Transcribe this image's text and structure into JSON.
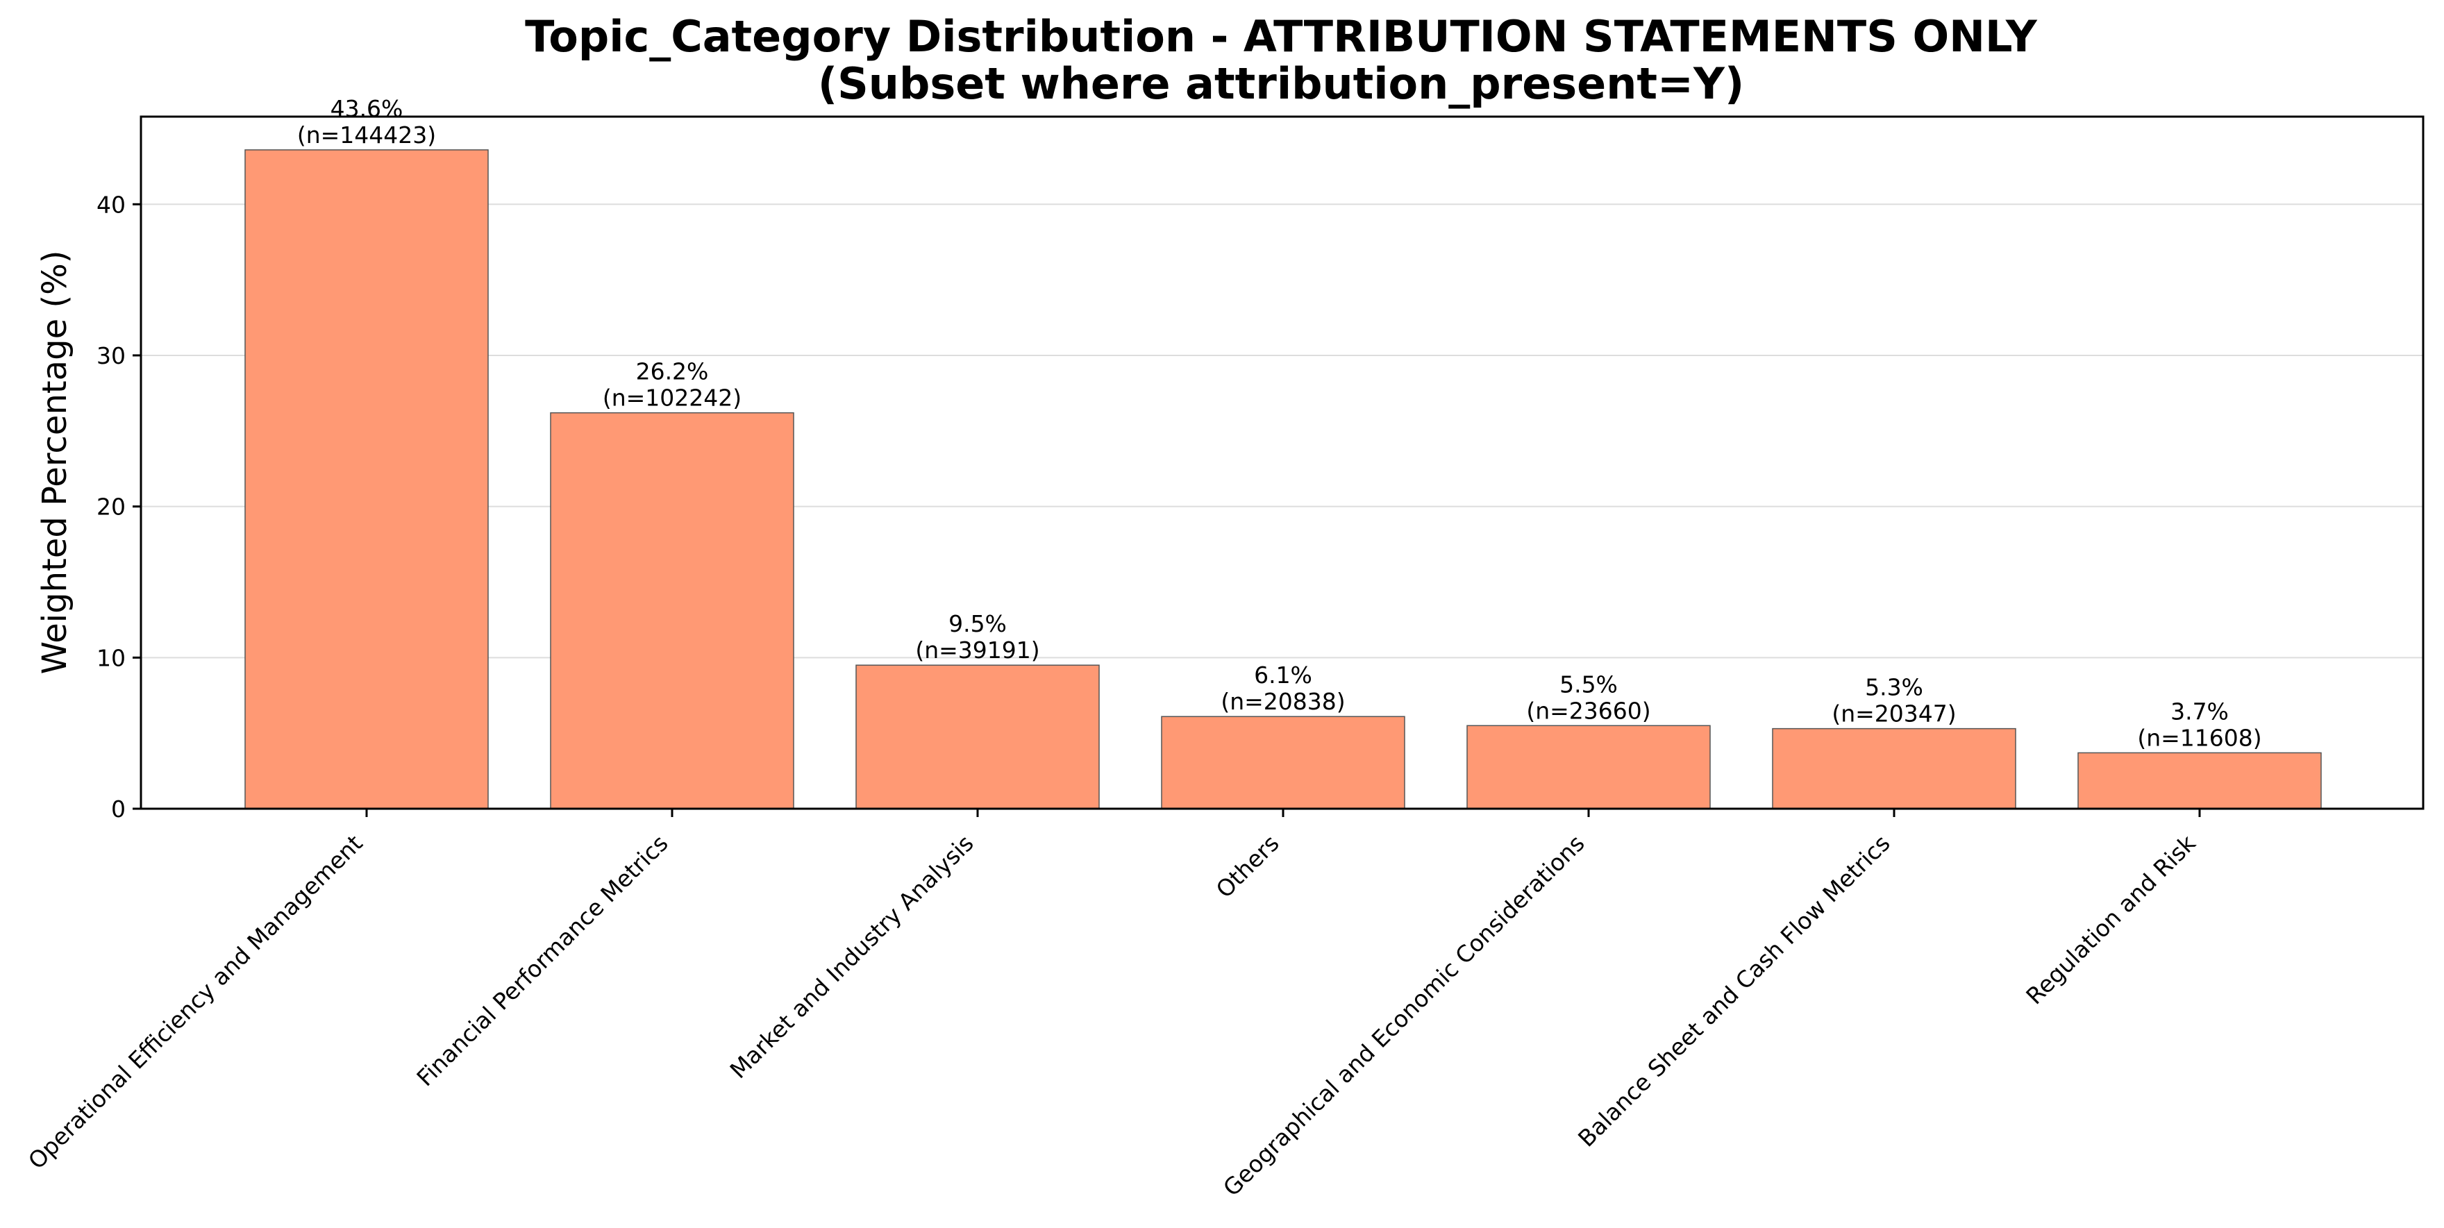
{
  "chart_data": {
    "type": "bar",
    "title": "Topic_Category Distribution - ATTRIBUTION STATEMENTS ONLY",
    "subtitle": "(Subset where attribution_present=Y)",
    "xlabel": "",
    "ylabel": "Weighted Percentage (%)",
    "ylim": [
      0,
      45.8
    ],
    "yticks": [
      0,
      10,
      20,
      30,
      40
    ],
    "grid": "y",
    "bar_color": "#ff9974",
    "categories": [
      "Operational Efficiency and Management",
      "Financial Performance Metrics",
      "Market and Industry Analysis",
      "Others",
      "Geographical and Economic Considerations",
      "Balance Sheet and Cash Flow Metrics",
      "Regulation and Risk"
    ],
    "values": [
      43.6,
      26.2,
      9.5,
      6.1,
      5.5,
      5.3,
      3.7
    ],
    "value_labels": [
      "43.6%",
      "26.2%",
      "9.5%",
      "6.1%",
      "5.5%",
      "5.3%",
      "3.7%"
    ],
    "count_labels": [
      "(n=144423)",
      "(n=102242)",
      "(n=39191)",
      "(n=20838)",
      "(n=23660)",
      "(n=20347)",
      "(n=11608)"
    ]
  }
}
